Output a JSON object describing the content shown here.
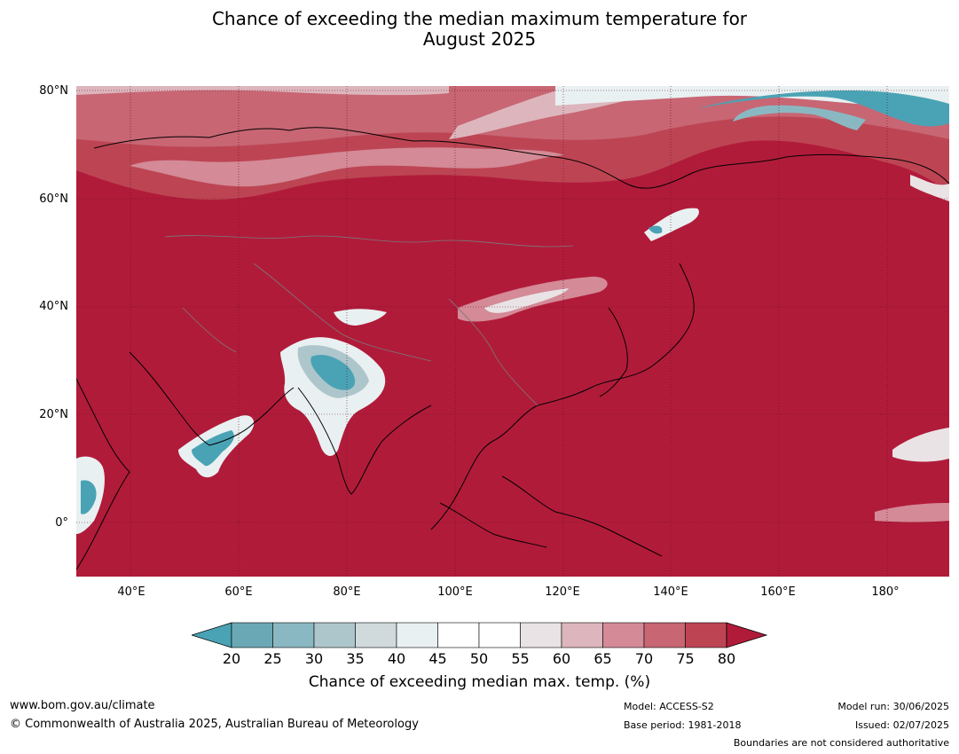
{
  "title_line1": "Chance of exceeding the median maximum temperature for",
  "title_line2": "August 2025",
  "map": {
    "lat_labels": [
      "80°N",
      "60°N",
      "40°N",
      "20°N",
      "0°"
    ],
    "lon_labels": [
      "40°E",
      "60°E",
      "80°E",
      "100°E",
      "120°E",
      "140°E",
      "160°E",
      "180°"
    ],
    "lat_range": [
      -10,
      80
    ],
    "lon_range": [
      30,
      191
    ]
  },
  "colorbar": {
    "ticks": [
      "20",
      "25",
      "30",
      "35",
      "40",
      "45",
      "50",
      "55",
      "60",
      "65",
      "70",
      "75",
      "80"
    ],
    "colors": [
      "#6ba8b5",
      "#8ab8c2",
      "#adc6cb",
      "#d0dadc",
      "#e9f0f1",
      "#ffffff",
      "#ffffff",
      "#e9e3e5",
      "#ddb6bd",
      "#d48a97",
      "#c86674",
      "#bd4553"
    ],
    "low_extend_color": "#4aa3b5",
    "high_extend_color": "#b11b3a",
    "label": "Chance of exceeding median max. temp. (%)"
  },
  "footer": {
    "website": "www.bom.gov.au/climate",
    "copyright": "© Commonwealth of Australia 2025, Australian Bureau of Meteorology",
    "model": "Model: ACCESS-S2",
    "base_period": "Base period: 1981-2018",
    "model_run": "Model run: 30/06/2025",
    "issued": "Issued: 02/07/2025",
    "disclaimer": "Boundaries are not considered authoritative"
  }
}
